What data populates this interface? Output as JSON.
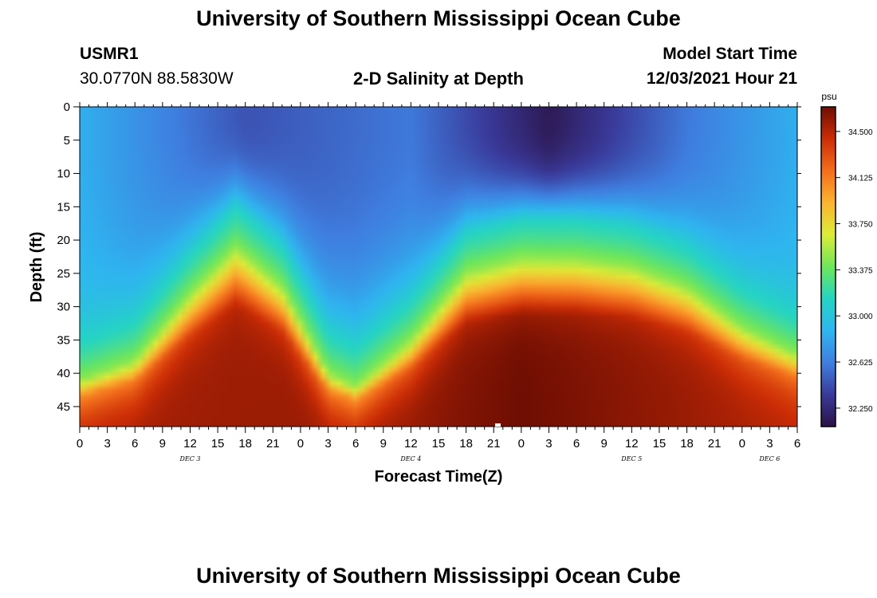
{
  "header": {
    "title": "University of Southern Mississippi Ocean Cube",
    "station": "USMR1",
    "location": "30.0770N  88.5830W",
    "subtitle": "2-D Salinity at Depth",
    "model_start_label": "Model Start Time",
    "model_start_value": "12/03/2021 Hour 21"
  },
  "footer": {
    "title": "University of Southern Mississippi Ocean Cube"
  },
  "chart_data": {
    "type": "heatmap",
    "title": "2-D Salinity at Depth",
    "xlabel": "Forecast Time(Z)",
    "ylabel": "Depth (ft)",
    "x_hours_range": [
      0,
      78
    ],
    "x_tick_labels": [
      "0",
      "3",
      "6",
      "9",
      "12",
      "15",
      "18",
      "21",
      "0",
      "3",
      "6",
      "9",
      "12",
      "15",
      "18",
      "21",
      "0",
      "3",
      "6",
      "9",
      "12",
      "15",
      "18",
      "21",
      "0",
      "3",
      "6"
    ],
    "day_labels": [
      {
        "label": "DEC 3",
        "hour": 12
      },
      {
        "label": "DEC 4",
        "hour": 36
      },
      {
        "label": "DEC 5",
        "hour": 60
      },
      {
        "label": "DEC 6",
        "hour": 75
      }
    ],
    "ylim": [
      0,
      48
    ],
    "y_ticks": [
      0,
      5,
      10,
      15,
      20,
      25,
      30,
      35,
      40,
      45
    ],
    "colorbar": {
      "unit": "psu",
      "min": 32.1,
      "max": 34.7,
      "ticks": [
        32.25,
        32.625,
        33.0,
        33.375,
        33.75,
        34.125,
        34.5
      ],
      "tick_labels": [
        "32.250",
        "32.625",
        "33.000",
        "33.375",
        "33.750",
        "34.125",
        "34.500"
      ],
      "colors": [
        "#2b1245",
        "#3a3a9a",
        "#3f7fe0",
        "#2fb5f0",
        "#25d4c4",
        "#6ee65a",
        "#dcec38",
        "#fbb431",
        "#f36e1c",
        "#cc2d06",
        "#6e0e03"
      ]
    },
    "halocline_depth_ft": [
      {
        "hour": 0,
        "depth": 41
      },
      {
        "hour": 6,
        "depth": 38
      },
      {
        "hour": 12,
        "depth": 28
      },
      {
        "hour": 17,
        "depth": 21
      },
      {
        "hour": 22,
        "depth": 27
      },
      {
        "hour": 27,
        "depth": 40
      },
      {
        "hour": 30,
        "depth": 42
      },
      {
        "hour": 36,
        "depth": 35
      },
      {
        "hour": 42,
        "depth": 25
      },
      {
        "hour": 48,
        "depth": 23
      },
      {
        "hour": 54,
        "depth": 23
      },
      {
        "hour": 60,
        "depth": 24
      },
      {
        "hour": 66,
        "depth": 27
      },
      {
        "hour": 72,
        "depth": 33
      },
      {
        "hour": 78,
        "depth": 37
      }
    ],
    "bottom_salinity_psu": [
      {
        "hour": 0,
        "value": 34.55
      },
      {
        "hour": 36,
        "value": 34.6
      },
      {
        "hour": 48,
        "value": 34.7
      },
      {
        "hour": 78,
        "value": 34.5
      }
    ],
    "surface_salinity_psu": [
      {
        "hour": 0,
        "value": 32.85
      },
      {
        "hour": 18,
        "value": 32.45
      },
      {
        "hour": 36,
        "value": 32.6
      },
      {
        "hour": 51,
        "value": 32.15
      },
      {
        "hour": 66,
        "value": 32.6
      },
      {
        "hour": 78,
        "value": 32.85
      }
    ]
  }
}
